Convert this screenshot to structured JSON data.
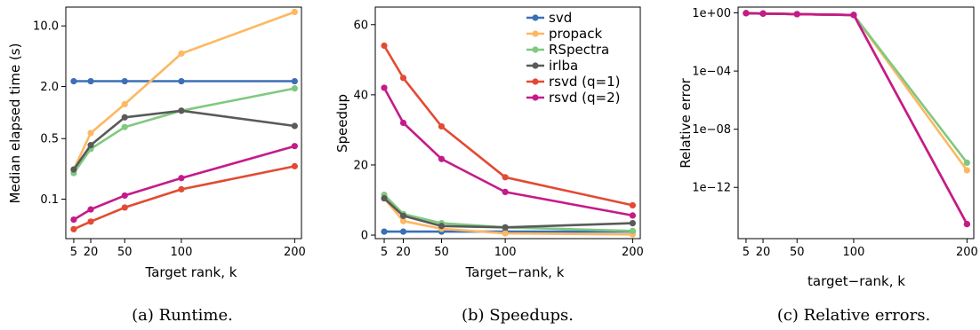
{
  "colors": {
    "svd": "#3b6fb6",
    "propack": "#fdb863",
    "RSpectra": "#7fc97f",
    "irlba": "#5a5a5a",
    "rsvd (q=1)": "#e34a33",
    "rsvd (q=2)": "#c51b8a"
  },
  "legend": [
    "svd",
    "propack",
    "RSpectra",
    "irlba",
    "rsvd (q=1)",
    "rsvd (q=2)"
  ],
  "chart_data": [
    {
      "type": "line",
      "caption": "(a) Runtime.",
      "xlabel": "Target rank, k",
      "ylabel": "Median elapsed time (s)",
      "yscale": "log",
      "ylim": [
        0.035,
        16.5
      ],
      "xlim": [
        -2,
        206
      ],
      "x": [
        5,
        20,
        50,
        100,
        200
      ],
      "x_ticks": [
        5,
        20,
        50,
        100,
        200
      ],
      "y_ticks": [
        0.1,
        0.5,
        2.0,
        10.0
      ],
      "y_tick_labels": [
        "0.1",
        "0.5",
        "2.0",
        "10.0"
      ],
      "series": [
        {
          "name": "svd",
          "values": [
            2.3,
            2.3,
            2.3,
            2.3,
            2.3
          ]
        },
        {
          "name": "propack",
          "values": [
            0.22,
            0.58,
            1.25,
            4.8,
            14.5
          ]
        },
        {
          "name": "RSpectra",
          "values": [
            0.2,
            0.38,
            0.68,
            1.05,
            1.9
          ]
        },
        {
          "name": "irlba",
          "values": [
            0.22,
            0.42,
            0.88,
            1.05,
            0.7
          ]
        },
        {
          "name": "rsvd (q=1)",
          "values": [
            0.045,
            0.055,
            0.08,
            0.13,
            0.24
          ]
        },
        {
          "name": "rsvd (q=2)",
          "values": [
            0.058,
            0.076,
            0.11,
            0.175,
            0.41
          ]
        }
      ]
    },
    {
      "type": "line",
      "caption": "(b) Speedups.",
      "xlabel": "Target−rank, k",
      "ylabel": "Speedup",
      "ylim": [
        -1,
        65
      ],
      "xlim": [
        -2,
        206
      ],
      "x": [
        5,
        20,
        50,
        100,
        200
      ],
      "x_ticks": [
        5,
        20,
        50,
        100,
        200
      ],
      "y_ticks": [
        0,
        20,
        40,
        60
      ],
      "series": [
        {
          "name": "svd",
          "values": [
            1,
            1,
            1,
            1,
            1
          ]
        },
        {
          "name": "propack",
          "values": [
            10.5,
            4.0,
            1.8,
            0.5,
            0.2
          ]
        },
        {
          "name": "RSpectra",
          "values": [
            11.5,
            6.0,
            3.4,
            2.2,
            1.2
          ]
        },
        {
          "name": "irlba",
          "values": [
            10.5,
            5.5,
            2.6,
            2.2,
            3.4
          ]
        },
        {
          "name": "rsvd (q=1)",
          "values": [
            54,
            44.8,
            31,
            16.5,
            8.5
          ]
        },
        {
          "name": "rsvd (q=2)",
          "values": [
            42,
            32,
            21.7,
            12.3,
            5.6
          ]
        }
      ]
    },
    {
      "type": "line",
      "caption": "(c) Relative errors.",
      "xlabel": "target−rank, k",
      "ylabel": "Relative error",
      "yscale": "log",
      "ylim": [
        3e-16,
        2.5
      ],
      "xlim": [
        -2,
        206
      ],
      "x": [
        5,
        20,
        50,
        100,
        200
      ],
      "x_ticks": [
        5,
        20,
        50,
        100,
        200
      ],
      "y_ticks": [
        1e-12,
        1e-08,
        0.0001,
        1
      ],
      "y_tick_labels": [
        "1e−12",
        "1e−08",
        "1e−04",
        "1e+00"
      ],
      "series": [
        {
          "name": "svd",
          "values": [
            0.95,
            0.9,
            0.82,
            0.72,
            null
          ]
        },
        {
          "name": "propack",
          "values": [
            0.95,
            0.9,
            0.82,
            0.72,
            1.5e-11
          ]
        },
        {
          "name": "RSpectra",
          "values": [
            0.95,
            0.9,
            0.82,
            0.72,
            5e-11
          ]
        },
        {
          "name": "irlba",
          "values": [
            0.95,
            0.9,
            0.82,
            0.72,
            null
          ]
        },
        {
          "name": "rsvd (q=1)",
          "values": [
            0.95,
            0.9,
            0.82,
            0.72,
            3e-15
          ]
        },
        {
          "name": "rsvd (q=2)",
          "values": [
            0.95,
            0.9,
            0.82,
            0.72,
            3e-15
          ]
        }
      ]
    }
  ]
}
